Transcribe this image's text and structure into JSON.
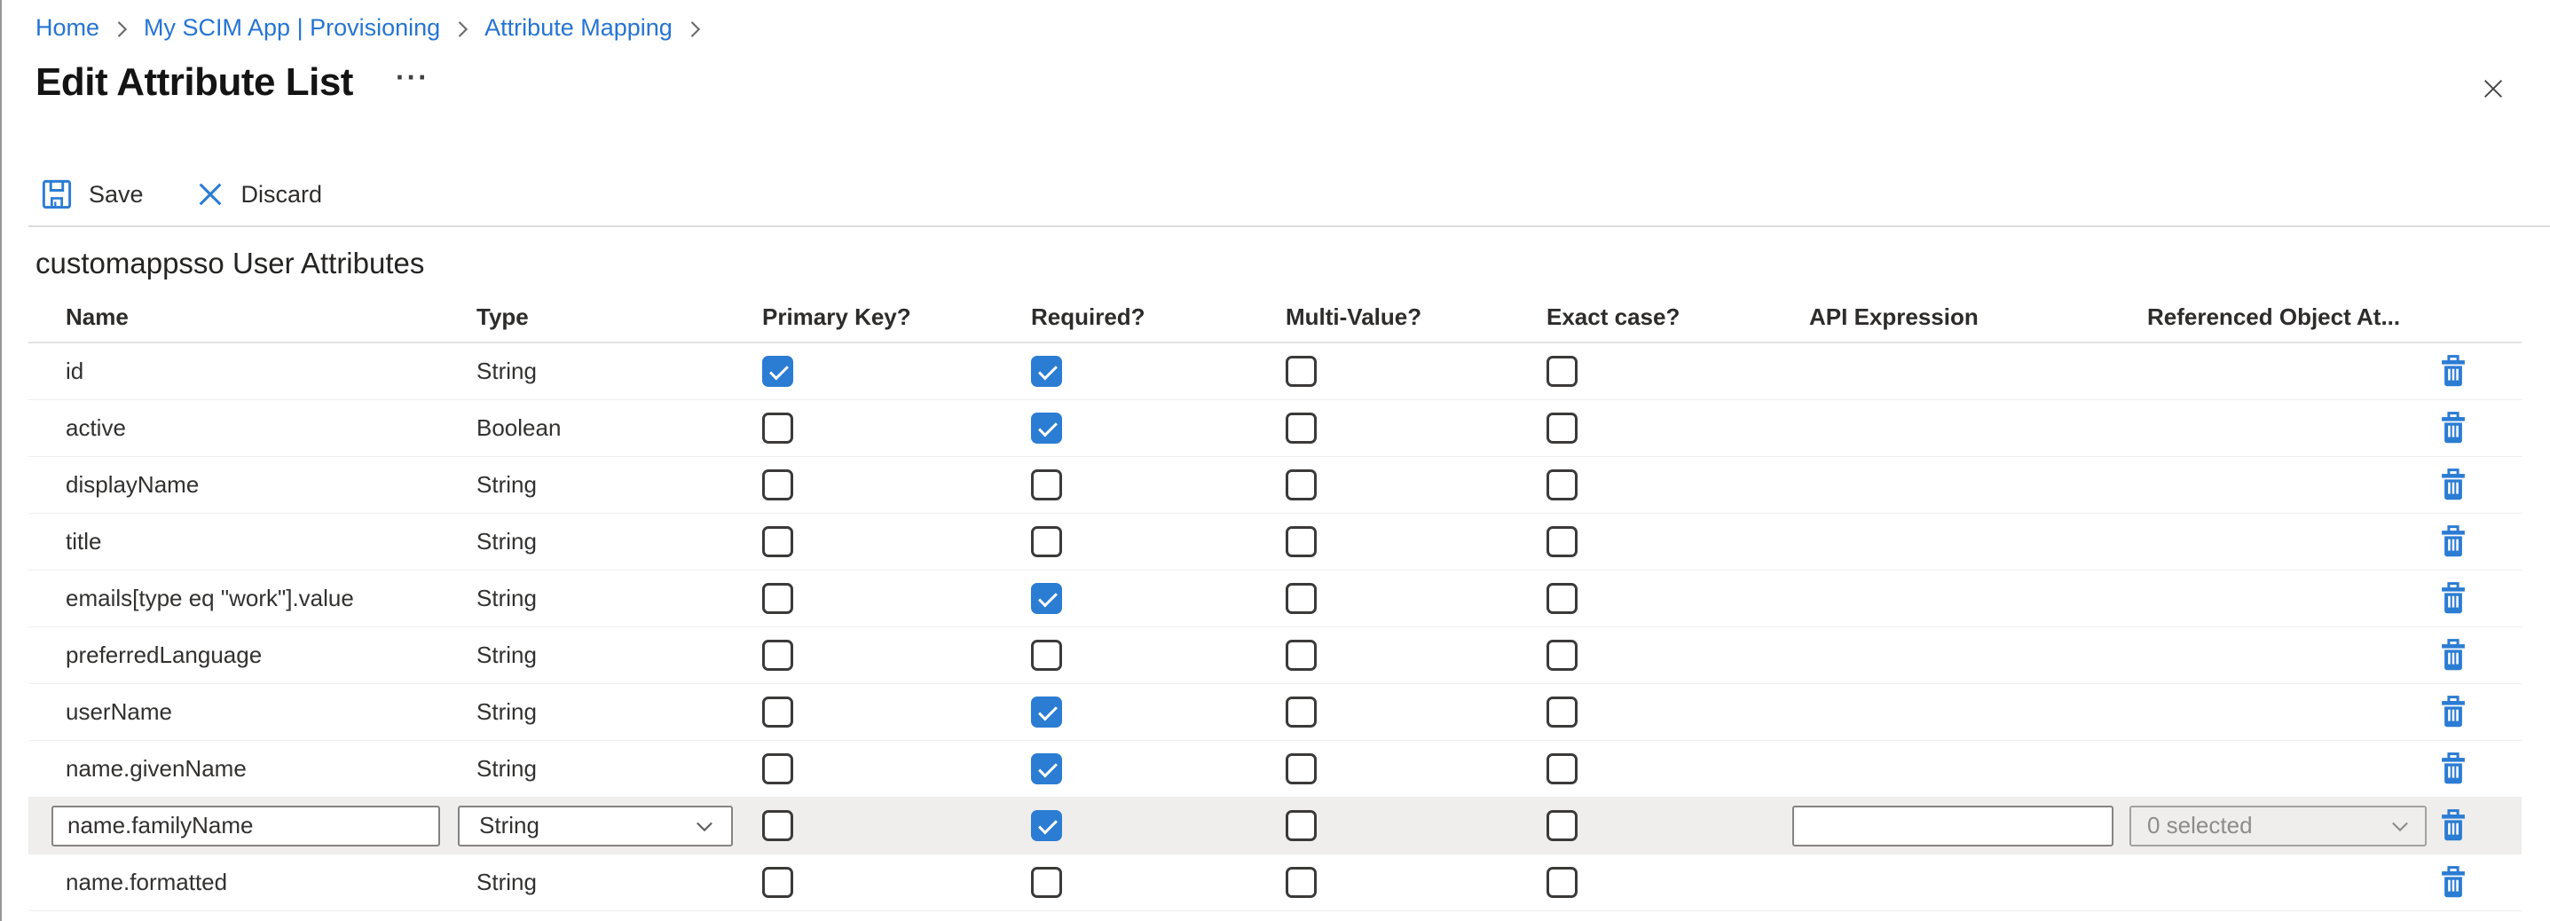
{
  "breadcrumb": {
    "items": [
      {
        "label": "Home"
      },
      {
        "label": "My SCIM App | Provisioning"
      },
      {
        "label": "Attribute Mapping"
      }
    ],
    "separator_icon": "chevron-right-icon"
  },
  "page": {
    "title": "Edit Attribute List",
    "more_options_glyph": "···",
    "close_icon": "close-icon"
  },
  "toolbar": {
    "save_label": "Save",
    "discard_label": "Discard",
    "save_icon": "floppy-disk-icon",
    "discard_icon": "x-icon"
  },
  "section": {
    "heading": "customappsso User Attributes"
  },
  "table": {
    "columns": [
      "Name",
      "Type",
      "Primary Key?",
      "Required?",
      "Multi-Value?",
      "Exact case?",
      "API Expression",
      "Referenced Object At..."
    ],
    "delete_icon": "trash-icon",
    "rows": [
      {
        "name": "id",
        "type": "String",
        "primary_key": true,
        "required": true,
        "multi_value": false,
        "exact_case": false,
        "editing": false
      },
      {
        "name": "active",
        "type": "Boolean",
        "primary_key": false,
        "required": true,
        "multi_value": false,
        "exact_case": false,
        "editing": false
      },
      {
        "name": "displayName",
        "type": "String",
        "primary_key": false,
        "required": false,
        "multi_value": false,
        "exact_case": false,
        "editing": false
      },
      {
        "name": "title",
        "type": "String",
        "primary_key": false,
        "required": false,
        "multi_value": false,
        "exact_case": false,
        "editing": false
      },
      {
        "name": "emails[type eq \"work\"].value",
        "type": "String",
        "primary_key": false,
        "required": true,
        "multi_value": false,
        "exact_case": false,
        "editing": false
      },
      {
        "name": "preferredLanguage",
        "type": "String",
        "primary_key": false,
        "required": false,
        "multi_value": false,
        "exact_case": false,
        "editing": false
      },
      {
        "name": "userName",
        "type": "String",
        "primary_key": false,
        "required": true,
        "multi_value": false,
        "exact_case": false,
        "editing": false
      },
      {
        "name": "name.givenName",
        "type": "String",
        "primary_key": false,
        "required": true,
        "multi_value": false,
        "exact_case": false,
        "editing": false
      },
      {
        "name": "name.familyName",
        "type": "String",
        "primary_key": false,
        "required": true,
        "multi_value": false,
        "exact_case": false,
        "editing": true,
        "api_expression_value": "",
        "referenced_object_value": "0 selected"
      },
      {
        "name": "name.formatted",
        "type": "String",
        "primary_key": false,
        "required": false,
        "multi_value": false,
        "exact_case": false,
        "editing": false
      }
    ]
  },
  "colors": {
    "accent_blue": "#2b7cd3",
    "link_blue": "#2574d4",
    "editing_row_bg": "#efeeed"
  }
}
